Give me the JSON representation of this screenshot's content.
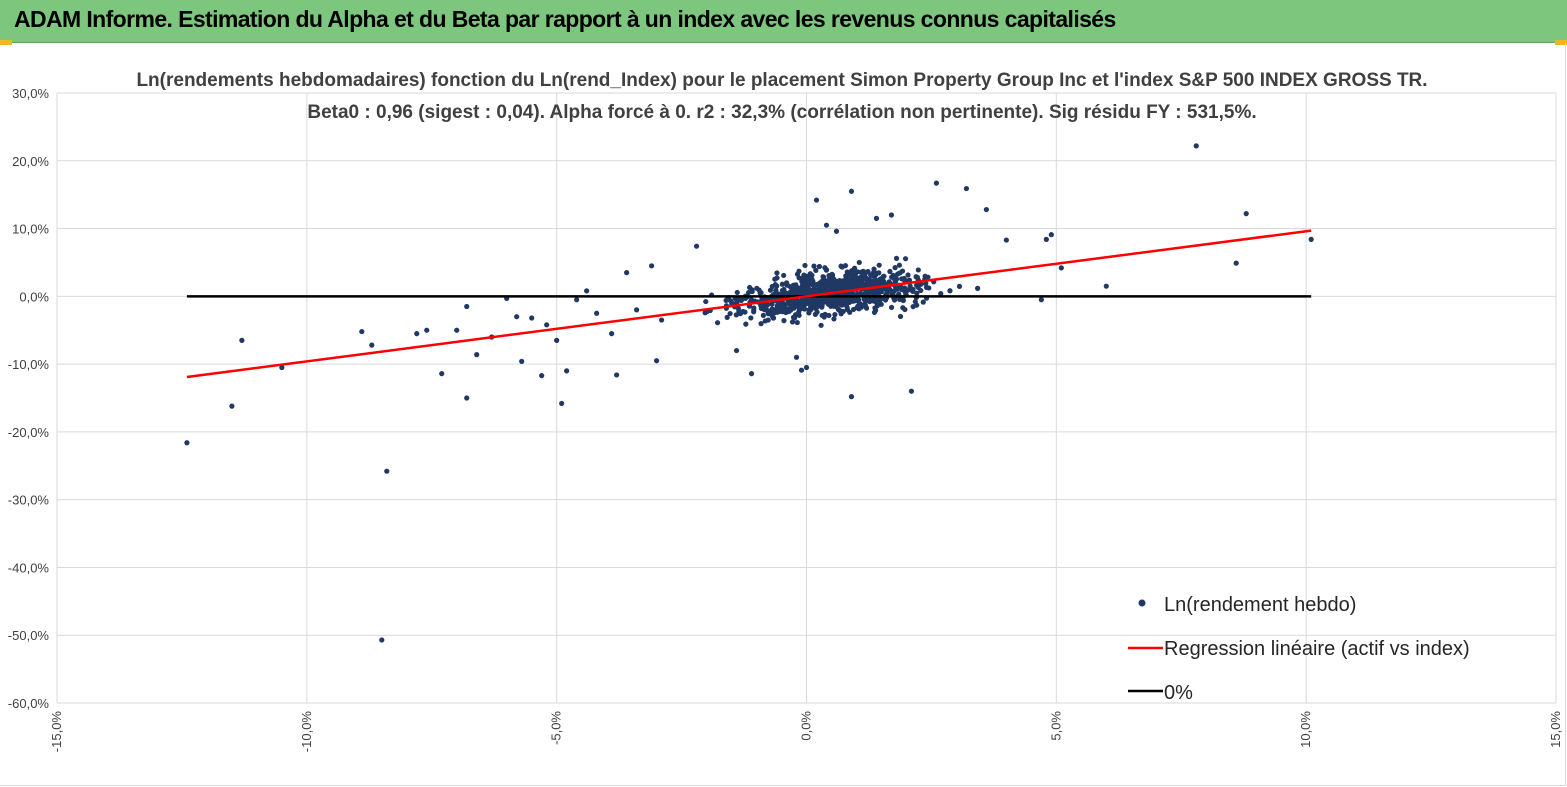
{
  "banner": {
    "title": "ADAM Informe. Estimation du Alpha et du Beta par rapport à un index avec les revenus connus capitalisés"
  },
  "colors": {
    "banner": "#7dc67d",
    "points": "#203864",
    "regression": "#ff0000",
    "zero_line": "#000000",
    "grid": "#d9d9d9"
  },
  "chart_data": {
    "type": "scatter",
    "title_lines": [
      "Ln(rendements hebdomadaires) fonction du Ln(rend_Index) pour le placement Simon Property Group Inc et l'index S&P 500 INDEX GROSS TR.",
      "Beta0 : 0,96 (sigest : 0,04). Alpha forcé à 0. r2 : 32,3% (corrélation non pertinente). Sig résidu FY : 531,5%."
    ],
    "xlim": [
      -15,
      15
    ],
    "ylim": [
      -60,
      30
    ],
    "x_ticks": [
      "-15,0%",
      "-10,0%",
      "-5,0%",
      "0,0%",
      "5,0%",
      "10,0%",
      "15,0%"
    ],
    "y_ticks": [
      "30,0%",
      "20,0%",
      "10,0%",
      "0,0%",
      "-10,0%",
      "-20,0%",
      "-30,0%",
      "-40,0%",
      "-50,0%",
      "-60,0%"
    ],
    "x_tick_values": [
      -15,
      -10,
      -5,
      0,
      5,
      10,
      15
    ],
    "y_tick_values": [
      30,
      20,
      10,
      0,
      -10,
      -20,
      -30,
      -40,
      -50,
      -60
    ],
    "grid": true,
    "legend_position": "bottom-right",
    "series": [
      {
        "name": "Ln(rendement hebdo)",
        "kind": "scatter",
        "points": [
          [
            -12.4,
            -21.6
          ],
          [
            -11.5,
            -16.2
          ],
          [
            -11.3,
            -6.5
          ],
          [
            -10.5,
            -10.5
          ],
          [
            -8.9,
            -5.2
          ],
          [
            -8.7,
            -7.2
          ],
          [
            -8.4,
            -25.8
          ],
          [
            -8.5,
            -50.7
          ],
          [
            -7.8,
            -5.5
          ],
          [
            -7.6,
            -5
          ],
          [
            -7.3,
            -11.4
          ],
          [
            -7,
            -5
          ],
          [
            -6.8,
            -1.5
          ],
          [
            -6.8,
            -15
          ],
          [
            -6.6,
            -8.6
          ],
          [
            -6.3,
            -6
          ],
          [
            -6,
            -0.3
          ],
          [
            -5.8,
            -3
          ],
          [
            -5.7,
            -9.6
          ],
          [
            -5.5,
            -3.2
          ],
          [
            -5.3,
            -11.7
          ],
          [
            -5.2,
            -4.2
          ],
          [
            -5,
            -6.5
          ],
          [
            -4.9,
            -15.8
          ],
          [
            -4.8,
            -11
          ],
          [
            -4.6,
            -0.5
          ],
          [
            -4.4,
            0.8
          ],
          [
            -4.2,
            -2.5
          ],
          [
            -3.9,
            -5.5
          ],
          [
            -3.8,
            -11.6
          ],
          [
            -3.6,
            3.5
          ],
          [
            -3.4,
            -2
          ],
          [
            -3.1,
            4.5
          ],
          [
            -3,
            -9.5
          ],
          [
            -2.9,
            -3.5
          ],
          [
            -2.2,
            7.4
          ],
          [
            -1.4,
            -8
          ],
          [
            -1.1,
            -11.4
          ],
          [
            -0.2,
            -9
          ],
          [
            -0.1,
            -10.9
          ],
          [
            0,
            -10.5
          ],
          [
            0.2,
            14.2
          ],
          [
            0.4,
            10.5
          ],
          [
            0.6,
            9.6
          ],
          [
            0.9,
            15.5
          ],
          [
            0.9,
            -14.8
          ],
          [
            1.4,
            11.5
          ],
          [
            1.7,
            12
          ],
          [
            2.1,
            -14
          ],
          [
            2.6,
            16.7
          ],
          [
            3.2,
            15.9
          ],
          [
            3.6,
            12.8
          ],
          [
            4,
            8.3
          ],
          [
            4.8,
            8.4
          ],
          [
            4.9,
            9.1
          ],
          [
            4.7,
            -0.5
          ],
          [
            5.1,
            4.2
          ],
          [
            6,
            1.5
          ],
          [
            7.8,
            22.2
          ],
          [
            8.6,
            4.9
          ],
          [
            8.8,
            12.2
          ],
          [
            10.1,
            8.4
          ]
        ],
        "dense_cluster": {
          "count": 900,
          "x_range": [
            -4,
            5
          ],
          "x_center": 0.5,
          "x_spread": 1.6,
          "slope": 0.96,
          "y_spread": 2.6,
          "seed": 12345
        }
      },
      {
        "name": "Regression linéaire (actif vs index)",
        "kind": "line",
        "x": [
          -12.4,
          10.1
        ],
        "y": [
          -11.9,
          9.7
        ]
      },
      {
        "name": "0%",
        "kind": "line",
        "x": [
          -12.4,
          10.1
        ],
        "y": [
          0,
          0
        ]
      }
    ]
  }
}
